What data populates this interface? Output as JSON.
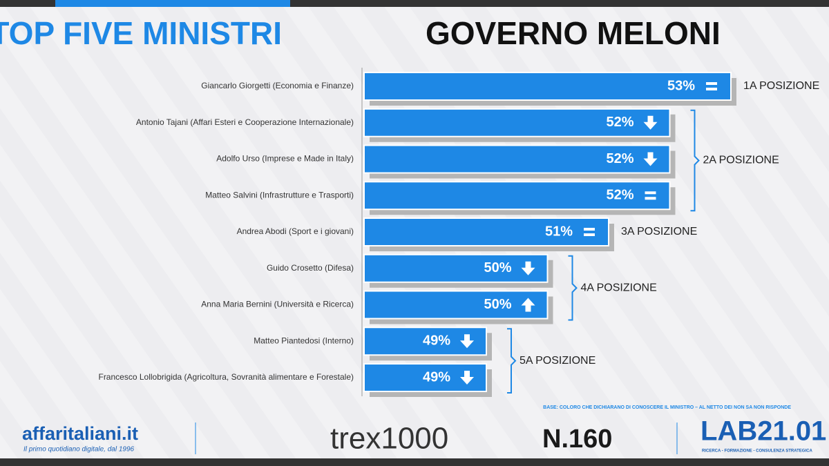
{
  "chart_data": {
    "type": "bar",
    "orientation": "horizontal",
    "title": "TOP FIVE MINISTRI",
    "title_2": "GOVERNO MELONI",
    "categories": [
      "Giancarlo Giorgetti (Economia e Finanze)",
      "Antonio Tajani (Affari Esteri e Cooperazione Internazionale)",
      "Adolfo Urso (Imprese e Made in Italy)",
      "Matteo Salvini (Infrastrutture e Trasporti)",
      "Andrea Abodi (Sport e i giovani)",
      "Guido Crosetto (Difesa)",
      "Anna Maria Bernini (Università e Ricerca)",
      "Matteo Piantedosi (Interno)",
      "Francesco Lollobrigida (Agricoltura, Sovranità alimentare e Forestale)"
    ],
    "values": [
      53,
      52,
      52,
      52,
      51,
      50,
      50,
      49,
      49
    ],
    "value_labels": [
      "53%",
      "52%",
      "52%",
      "52%",
      "51%",
      "50%",
      "50%",
      "49%",
      "49%"
    ],
    "trends": [
      "equal",
      "down",
      "down",
      "equal",
      "equal",
      "down",
      "up",
      "down",
      "down"
    ],
    "color": "#1e88e5",
    "xlim": [
      47,
      53
    ],
    "groups": [
      {
        "label": "1A POSIZIONE",
        "items": [
          0
        ]
      },
      {
        "label": "2A POSIZIONE",
        "items": [
          1,
          2,
          3
        ]
      },
      {
        "label": "3A POSIZIONE",
        "items": [
          4
        ]
      },
      {
        "label": "4A POSIZIONE",
        "items": [
          5,
          6
        ]
      },
      {
        "label": "5A POSIZIONE",
        "items": [
          7,
          8
        ]
      }
    ],
    "note": "BASE: COLORO CHE DICHIARANO DI CONOSCERE IL MINISTRO – AL NETTO DEI NON SA NON RISPONDE"
  },
  "footer": {
    "brand": "affaritaliani.it",
    "tagline": "Il primo quotidiano digitale, dal 1996",
    "trex": "trex1000",
    "issue": "N.160",
    "lab": "LAB21.01",
    "lab_tagline": "RICERCA - FORMAZIONE - CONSULENZA STRATEGICA"
  }
}
